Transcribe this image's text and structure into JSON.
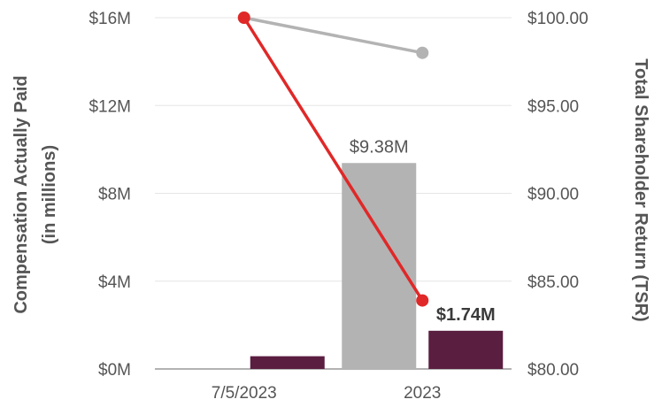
{
  "chart_data": {
    "type": "bar",
    "categories": [
      "7/5/2023",
      "2023"
    ],
    "series": [
      {
        "role": "bar-light",
        "color": "#b3b3b3",
        "values": [
          null,
          9.38
        ],
        "data_labels": [
          null,
          "$9.38M"
        ]
      },
      {
        "role": "bar-dark",
        "color": "#5a1e40",
        "values": [
          0.58,
          1.74
        ],
        "data_labels": [
          null,
          "$1.74M"
        ]
      },
      {
        "role": "line-gray",
        "color": "#b3b3b3",
        "axis": "right",
        "values": [
          100.0,
          98.0
        ]
      },
      {
        "role": "line-red",
        "color": "#e02828",
        "axis": "right",
        "values": [
          100.0,
          83.9
        ]
      }
    ],
    "ylabel": [
      "Compensation Actually Paid",
      "(in millions)"
    ],
    "y2label": "Total Shareholder Return (TSR)",
    "ylim": [
      0,
      16
    ],
    "y2lim": [
      80,
      100
    ],
    "yticks": [
      "$0M",
      "$4M",
      "$8M",
      "$12M",
      "$16M"
    ],
    "y2ticks": [
      "$80.00",
      "$85.00",
      "$90.00",
      "$95.00",
      "$100.00"
    ],
    "grid": true,
    "legend": "none"
  }
}
